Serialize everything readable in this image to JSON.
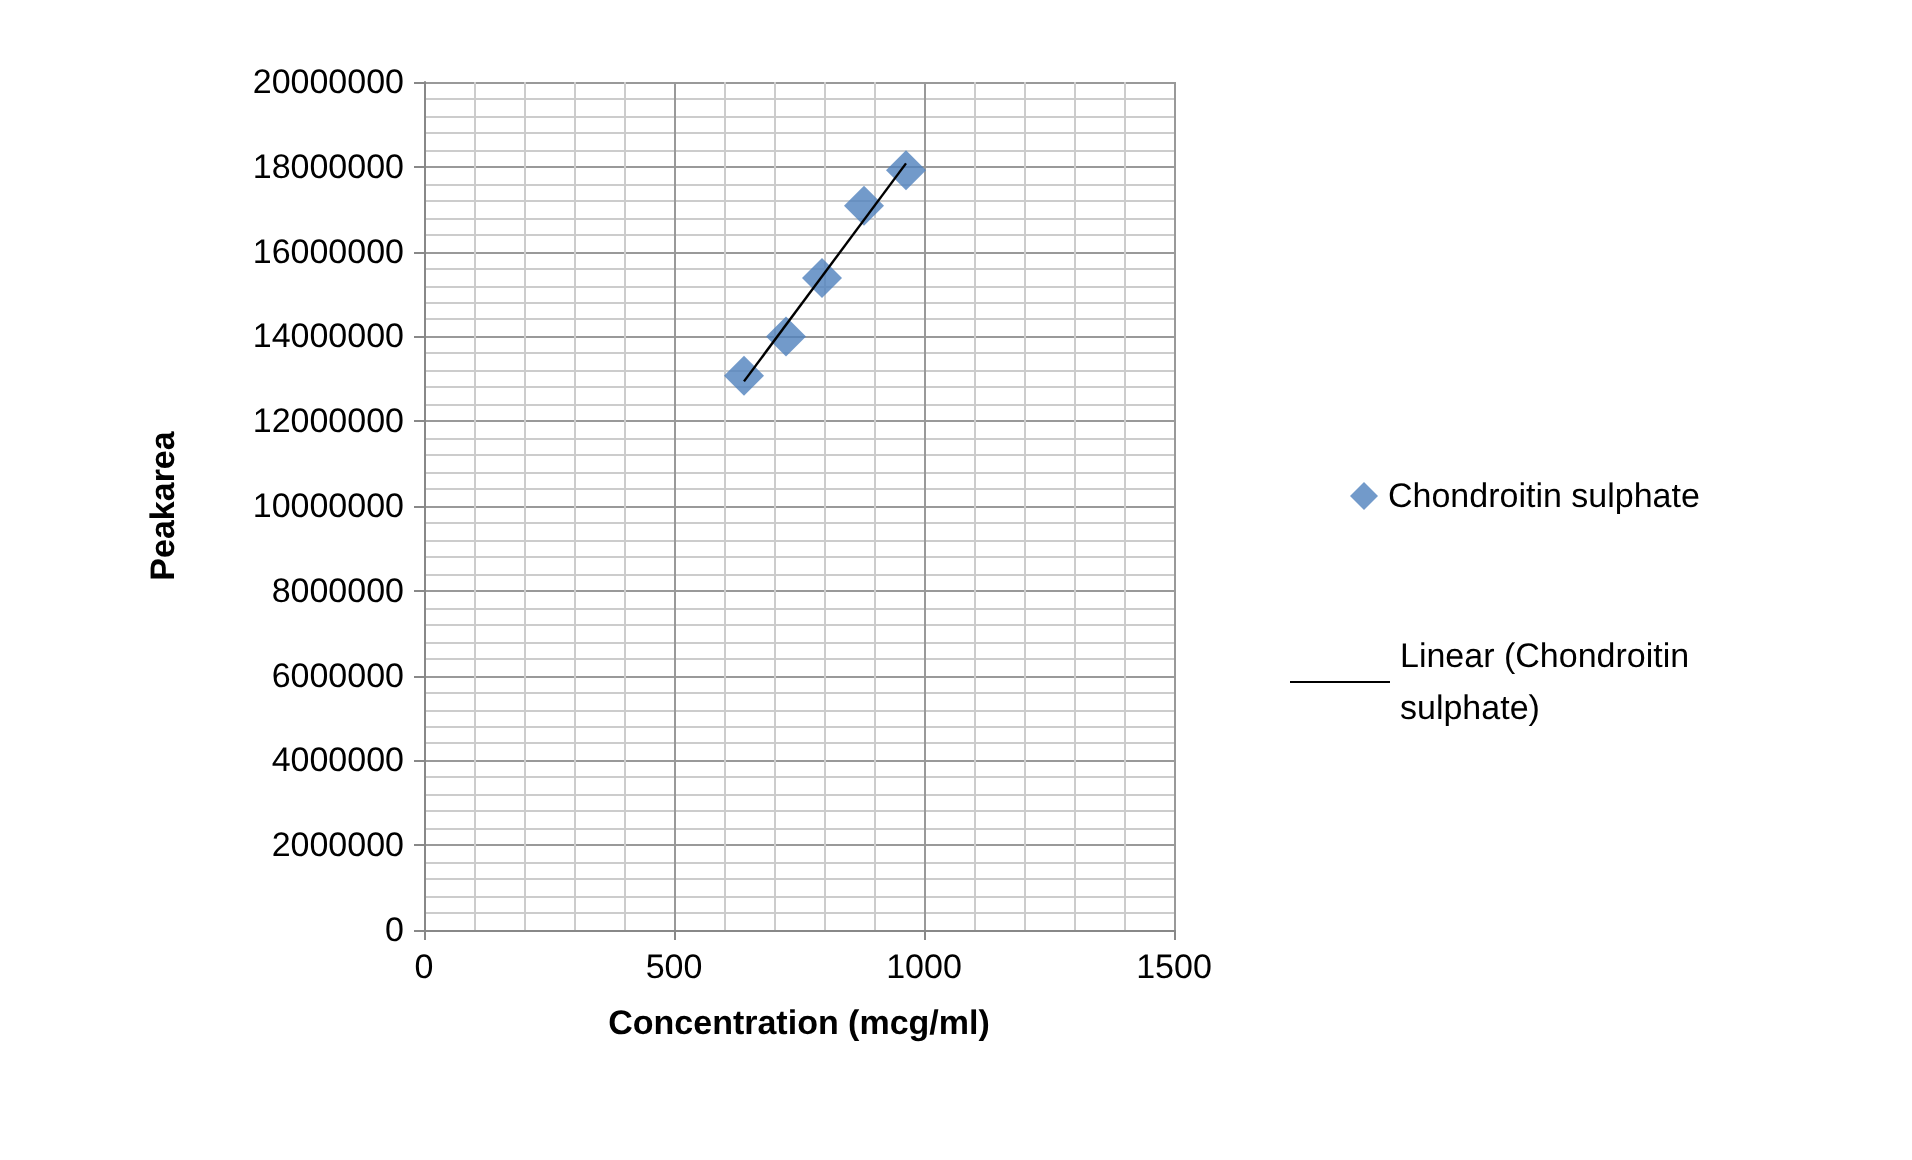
{
  "chart_data": {
    "type": "scatter",
    "xlabel": "Concentration (mcg/ml)",
    "ylabel": "Peakarea",
    "xlim": [
      0,
      1500
    ],
    "xticks": [
      0,
      500,
      1000,
      1500
    ],
    "ylim": [
      0,
      20000000
    ],
    "yticks": [
      0,
      2000000,
      4000000,
      6000000,
      8000000,
      10000000,
      12000000,
      14000000,
      16000000,
      18000000,
      20000000
    ],
    "grid": true,
    "legend": "right",
    "series": [
      {
        "name": "Chondroitin sulphate",
        "marker": "diamond",
        "color": "#4f81bd",
        "x": [
          640,
          724,
          796,
          880,
          964
        ],
        "values": [
          13070000,
          14000000,
          15380000,
          17080000,
          17920000
        ]
      },
      {
        "name": "Linear (Chondroitin sulphate)",
        "type": "line",
        "marker": "none",
        "color": "#000000",
        "line_style": "solid",
        "x": [
          640,
          964
        ],
        "values": [
          12940000,
          18080000
        ]
      }
    ]
  }
}
